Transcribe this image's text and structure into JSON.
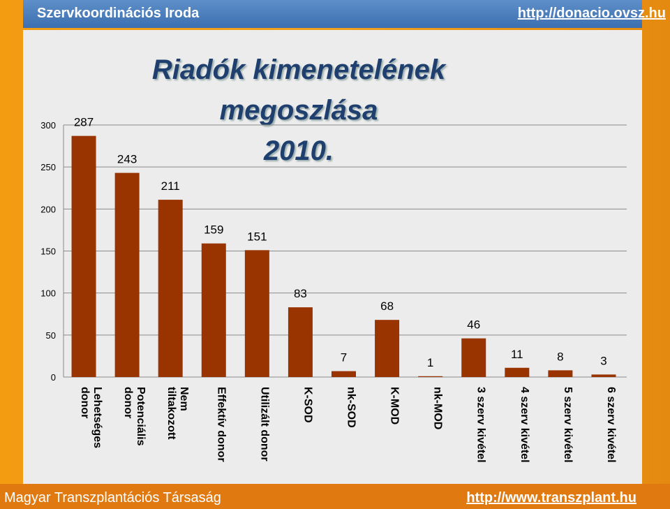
{
  "header": {
    "left_text": "Szervkoordinációs Iroda",
    "right_link": "http://donacio.ovsz.hu"
  },
  "footer": {
    "left_text": "Magyar Transzplantációs Társaság",
    "right_link": "http://www.transzplant.hu"
  },
  "colors": {
    "bar": "#993300",
    "header_bg": "#4a7ebf",
    "footer_bg": "#e07a10",
    "title": "#1f3f6e"
  },
  "chart_data": {
    "type": "bar",
    "title_line1": "Riadók kimenetelének megoszlása",
    "title_line2": "2010.",
    "categories": [
      [
        "Lehetséges",
        "donor"
      ],
      [
        "Potenciális",
        "donor"
      ],
      [
        "Nem",
        "tiltakozott"
      ],
      [
        "Effektív donor"
      ],
      [
        "Utilizált donor"
      ],
      [
        "K-SOD"
      ],
      [
        "nk-SOD"
      ],
      [
        "K-MOD"
      ],
      [
        "nk-MOD"
      ],
      [
        "3 szerv kivétel"
      ],
      [
        "4 szerv kivétel"
      ],
      [
        "5 szerv kivétel"
      ],
      [
        "6 szerv kivétel"
      ]
    ],
    "values": [
      287,
      243,
      211,
      159,
      151,
      83,
      7,
      68,
      1,
      46,
      11,
      8,
      3
    ],
    "data_labels": [
      "287",
      "243",
      "211",
      "159",
      "151",
      "83",
      "7",
      "68",
      "1",
      "46",
      "11",
      "8",
      "3"
    ],
    "y_ticks": [
      0,
      50,
      100,
      150,
      200,
      250,
      300
    ],
    "ylim": [
      0,
      300
    ],
    "grid": true,
    "legend": "none"
  }
}
